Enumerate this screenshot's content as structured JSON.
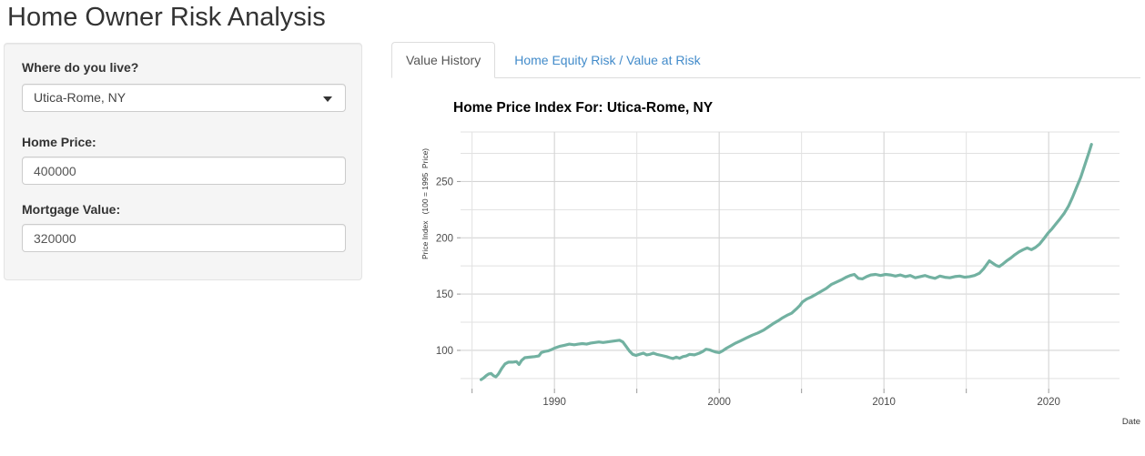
{
  "page": {
    "title": "Home Owner Risk Analysis"
  },
  "sidebar": {
    "location_label": "Where do you live?",
    "location_value": "Utica-Rome, NY",
    "home_price_label": "Home Price:",
    "home_price_value": "400000",
    "mortgage_label": "Mortgage Value:",
    "mortgage_value": "320000"
  },
  "tabs": {
    "value_history": "Value History",
    "equity_risk": "Home Equity Risk / Value at Risk"
  },
  "colors": {
    "accent_link": "#428bca",
    "line": "#72b1a1",
    "grid_major": "#d4d4d4",
    "grid_minor": "#e1e1e1",
    "tick_label": "#4d4d4d",
    "axis_title": "#333333",
    "well_bg": "#f5f5f5"
  },
  "chart_data": {
    "type": "line",
    "title": "Home Price Index For: Utica-Rome, NY",
    "xlabel": "Date",
    "ylabel": "Price Index   (100 = 1995  Price)",
    "grid": true,
    "legend": "none",
    "xlim": [
      1984.3,
      2024.3
    ],
    "ylim": [
      66,
      294
    ],
    "x_major_ticks": [
      1990,
      2000,
      2010,
      2020
    ],
    "x_minor_ticks": [
      1985,
      1995,
      2005,
      2015
    ],
    "y_major_ticks": [
      100,
      150,
      200,
      250
    ],
    "y_minor_ticks": [
      75,
      125,
      175,
      225,
      275
    ],
    "line_color": "#72b1a1",
    "series": [
      {
        "name": "Home Price Index",
        "points": [
          [
            1985.55,
            74
          ],
          [
            1985.7,
            75.5
          ],
          [
            1985.85,
            77.5
          ],
          [
            1986.0,
            79
          ],
          [
            1986.15,
            79.5
          ],
          [
            1986.3,
            77.5
          ],
          [
            1986.45,
            76.5
          ],
          [
            1986.6,
            79
          ],
          [
            1986.8,
            84
          ],
          [
            1987.0,
            88
          ],
          [
            1987.2,
            89.5
          ],
          [
            1987.45,
            89.5
          ],
          [
            1987.7,
            90
          ],
          [
            1987.85,
            87.5
          ],
          [
            1988.0,
            91
          ],
          [
            1988.2,
            93.5
          ],
          [
            1988.5,
            94
          ],
          [
            1988.8,
            94.5
          ],
          [
            1989.05,
            95
          ],
          [
            1989.2,
            98
          ],
          [
            1989.4,
            99
          ],
          [
            1989.6,
            99.5
          ],
          [
            1989.8,
            100.5
          ],
          [
            1990.0,
            102
          ],
          [
            1990.3,
            103.5
          ],
          [
            1990.6,
            104.5
          ],
          [
            1990.9,
            105.5
          ],
          [
            1991.2,
            105
          ],
          [
            1991.45,
            105.5
          ],
          [
            1991.7,
            106
          ],
          [
            1991.95,
            105.5
          ],
          [
            1992.2,
            106.5
          ],
          [
            1992.45,
            107
          ],
          [
            1992.7,
            107.5
          ],
          [
            1992.95,
            107
          ],
          [
            1993.2,
            107.5
          ],
          [
            1993.45,
            108
          ],
          [
            1993.7,
            108.5
          ],
          [
            1993.95,
            109
          ],
          [
            1994.15,
            107.5
          ],
          [
            1994.35,
            103.5
          ],
          [
            1994.55,
            99.5
          ],
          [
            1994.75,
            96.5
          ],
          [
            1994.95,
            95.5
          ],
          [
            1995.15,
            96.5
          ],
          [
            1995.4,
            97.5
          ],
          [
            1995.6,
            96
          ],
          [
            1995.8,
            96.5
          ],
          [
            1996.0,
            97.5
          ],
          [
            1996.2,
            96.5
          ],
          [
            1996.5,
            95.5
          ],
          [
            1996.8,
            94.5
          ],
          [
            1997.0,
            93.5
          ],
          [
            1997.2,
            92.8
          ],
          [
            1997.4,
            94
          ],
          [
            1997.6,
            93
          ],
          [
            1997.8,
            94.5
          ],
          [
            1998.0,
            95
          ],
          [
            1998.2,
            96.5
          ],
          [
            1998.5,
            96
          ],
          [
            1998.8,
            97.5
          ],
          [
            1999.0,
            99
          ],
          [
            1999.2,
            101
          ],
          [
            1999.4,
            100.5
          ],
          [
            1999.6,
            99.5
          ],
          [
            1999.8,
            98.5
          ],
          [
            2000.0,
            98
          ],
          [
            2000.2,
            99.5
          ],
          [
            2000.45,
            102
          ],
          [
            2000.7,
            104
          ],
          [
            2001.0,
            106.5
          ],
          [
            2001.3,
            108.5
          ],
          [
            2001.65,
            111
          ],
          [
            2002.0,
            113.5
          ],
          [
            2002.35,
            115.5
          ],
          [
            2002.7,
            118
          ],
          [
            2003.0,
            121
          ],
          [
            2003.3,
            124
          ],
          [
            2003.6,
            126.5
          ],
          [
            2003.85,
            129
          ],
          [
            2004.1,
            131
          ],
          [
            2004.4,
            133
          ],
          [
            2004.7,
            137
          ],
          [
            2004.9,
            140
          ],
          [
            2005.05,
            143
          ],
          [
            2005.3,
            145.5
          ],
          [
            2005.6,
            147.5
          ],
          [
            2005.9,
            150
          ],
          [
            2006.2,
            152.5
          ],
          [
            2006.5,
            155
          ],
          [
            2006.8,
            158.5
          ],
          [
            2007.1,
            160.5
          ],
          [
            2007.4,
            162.5
          ],
          [
            2007.7,
            165
          ],
          [
            2007.95,
            166.5
          ],
          [
            2008.2,
            167.5
          ],
          [
            2008.45,
            164
          ],
          [
            2008.7,
            163.5
          ],
          [
            2008.95,
            165.5
          ],
          [
            2009.2,
            167
          ],
          [
            2009.5,
            167.5
          ],
          [
            2009.8,
            166.5
          ],
          [
            2010.1,
            167.5
          ],
          [
            2010.4,
            167
          ],
          [
            2010.7,
            166
          ],
          [
            2011.0,
            167
          ],
          [
            2011.3,
            165.5
          ],
          [
            2011.6,
            166.5
          ],
          [
            2011.9,
            164.5
          ],
          [
            2012.2,
            165.5
          ],
          [
            2012.5,
            166.5
          ],
          [
            2012.8,
            165
          ],
          [
            2013.1,
            164
          ],
          [
            2013.4,
            166
          ],
          [
            2013.7,
            165
          ],
          [
            2014.0,
            164.5
          ],
          [
            2014.3,
            165.5
          ],
          [
            2014.6,
            166
          ],
          [
            2014.9,
            165
          ],
          [
            2015.2,
            165.5
          ],
          [
            2015.5,
            166.5
          ],
          [
            2015.8,
            168.5
          ],
          [
            2016.05,
            172.5
          ],
          [
            2016.25,
            176.5
          ],
          [
            2016.4,
            179.5
          ],
          [
            2016.6,
            177.5
          ],
          [
            2016.8,
            175.5
          ],
          [
            2017.0,
            174.5
          ],
          [
            2017.2,
            176.5
          ],
          [
            2017.45,
            179.5
          ],
          [
            2017.7,
            182
          ],
          [
            2017.95,
            185
          ],
          [
            2018.2,
            187.5
          ],
          [
            2018.45,
            189.5
          ],
          [
            2018.7,
            191
          ],
          [
            2018.95,
            189.5
          ],
          [
            2019.2,
            191.5
          ],
          [
            2019.45,
            194.5
          ],
          [
            2019.7,
            199
          ],
          [
            2019.95,
            204
          ],
          [
            2020.2,
            208
          ],
          [
            2020.45,
            212.5
          ],
          [
            2020.7,
            217
          ],
          [
            2020.95,
            222
          ],
          [
            2021.2,
            228
          ],
          [
            2021.45,
            236
          ],
          [
            2021.7,
            245
          ],
          [
            2021.95,
            254
          ],
          [
            2022.2,
            265
          ],
          [
            2022.45,
            276
          ],
          [
            2022.6,
            283
          ]
        ]
      }
    ]
  }
}
